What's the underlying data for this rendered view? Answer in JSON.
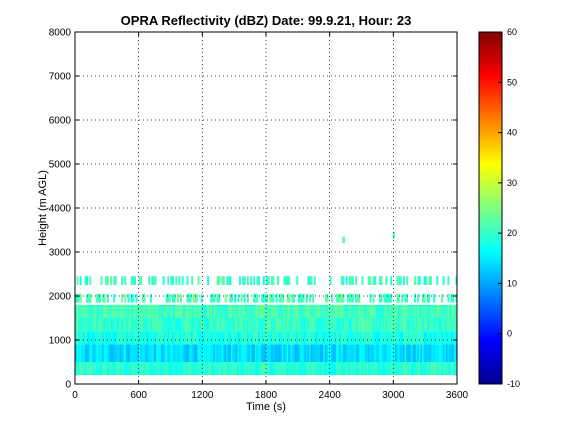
{
  "chart_data": {
    "type": "heatmap",
    "title": "OPRA Reflectivity (dBZ)  Date: 99.9.21, Hour: 23",
    "xlabel": "Time (s)",
    "ylabel": "Height (m AGL)",
    "xlim": [
      0,
      3600
    ],
    "ylim": [
      0,
      8000
    ],
    "x_ticks": [
      "0",
      "600",
      "1200",
      "1800",
      "2400",
      "3000",
      "3600"
    ],
    "x_tick_values": [
      0,
      600,
      1200,
      1800,
      2400,
      3000,
      3600
    ],
    "y_ticks": [
      "0",
      "1000",
      "2000",
      "3000",
      "4000",
      "5000",
      "6000",
      "7000",
      "8000"
    ],
    "y_tick_values": [
      0,
      1000,
      2000,
      3000,
      4000,
      5000,
      6000,
      7000,
      8000
    ],
    "grid": true,
    "grid_style": "dotted",
    "colormap": "jet",
    "colorbar": {
      "range": [
        -10,
        60
      ],
      "ticks": [
        "-10",
        "0",
        "10",
        "20",
        "30",
        "40",
        "50",
        "60"
      ],
      "tick_values": [
        -10,
        0,
        10,
        20,
        30,
        40,
        50,
        60
      ]
    },
    "series": [
      {
        "values": [
          {
            "height_range": [
              200,
              500
            ],
            "time_range": [
              0,
              3600
            ],
            "dbz": 19
          },
          {
            "height_range": [
              500,
              900
            ],
            "time_range": [
              0,
              3600
            ],
            "dbz": 14
          },
          {
            "height_range": [
              900,
              1200
            ],
            "time_range": [
              0,
              3600
            ],
            "dbz": 18
          },
          {
            "height_range": [
              1200,
              1500
            ],
            "time_range": [
              0,
              3600
            ],
            "dbz": 20
          },
          {
            "height_range": [
              1500,
              1800
            ],
            "time_range": [
              0,
              3600
            ],
            "dbz": 21
          },
          {
            "height_range": [
              1850,
              2050
            ],
            "time_range": [
              0,
              3600
            ],
            "dbz": 21,
            "coverage": "sparse"
          },
          {
            "height_range": [
              2250,
              2450
            ],
            "time_range": [
              0,
              3600
            ],
            "dbz": 20,
            "coverage": "sparse"
          },
          {
            "height_range": [
              3200,
              3350
            ],
            "time_range": [
              2520,
              2540
            ],
            "dbz": 21
          },
          {
            "height_range": [
              3300,
              3450
            ],
            "time_range": [
              2995,
              3010
            ],
            "dbz": 20
          }
        ]
      }
    ]
  }
}
